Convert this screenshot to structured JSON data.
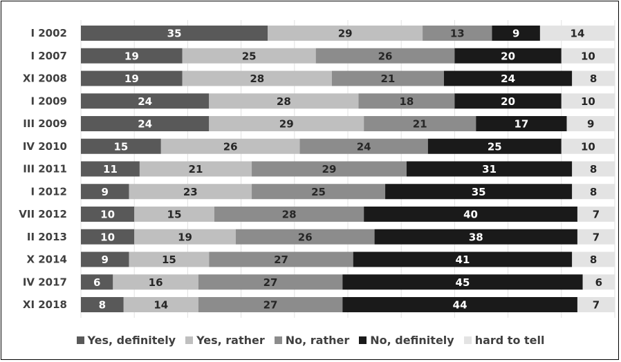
{
  "chart_data": {
    "type": "bar",
    "orientation": "horizontal",
    "stacked": true,
    "categories": [
      "I 2002",
      "I 2007",
      "XI 2008",
      "I 2009",
      "III 2009",
      "IV 2010",
      "III 2011",
      "I 2012",
      "VII 2012",
      "II 2013",
      "X 2014",
      "IV 2017",
      "XI 2018"
    ],
    "series": [
      {
        "name": "Yes, definitely",
        "color": "#595959",
        "label_color": "#ffffff",
        "values": [
          35,
          19,
          19,
          24,
          24,
          15,
          11,
          9,
          10,
          10,
          9,
          6,
          8
        ]
      },
      {
        "name": "Yes, rather",
        "color": "#bfbfbf",
        "label_color": "#262626",
        "values": [
          29,
          25,
          28,
          28,
          29,
          26,
          21,
          23,
          15,
          19,
          15,
          16,
          14
        ]
      },
      {
        "name": "No, rather",
        "color": "#8c8c8c",
        "label_color": "#262626",
        "values": [
          13,
          26,
          21,
          18,
          21,
          24,
          29,
          25,
          28,
          26,
          27,
          27,
          27
        ]
      },
      {
        "name": "No, definitely",
        "color": "#1a1a1a",
        "label_color": "#ffffff",
        "values": [
          9,
          20,
          24,
          20,
          17,
          25,
          31,
          35,
          40,
          38,
          41,
          45,
          44
        ]
      },
      {
        "name": "hard to tell",
        "color": "#e3e3e3",
        "label_color": "#262626",
        "values": [
          14,
          10,
          8,
          10,
          9,
          10,
          8,
          8,
          7,
          7,
          8,
          6,
          7
        ]
      }
    ],
    "xlim": [
      0,
      100
    ],
    "legend_position": "bottom",
    "grid": true
  }
}
